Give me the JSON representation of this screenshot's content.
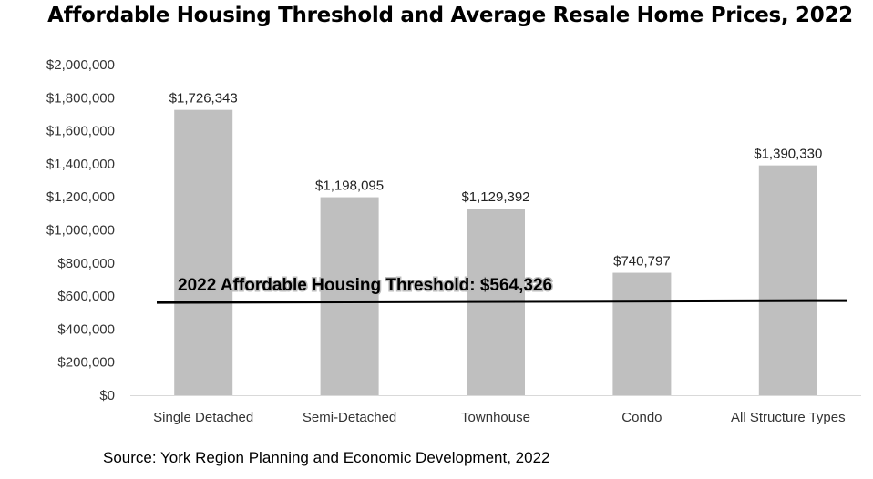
{
  "chart_data": {
    "type": "bar",
    "title": "Affordable Housing Threshold and Average Resale Home Prices, 2022",
    "categories": [
      "Single Detached",
      "Semi-Detached",
      "Townhouse",
      "Condo",
      "All Structure Types"
    ],
    "values": [
      1726343,
      1198095,
      1129392,
      740797,
      1390330
    ],
    "data_labels": [
      "$1,726,343",
      "$1,198,095",
      "$1,129,392",
      "$740,797",
      "$1,390,330"
    ],
    "y_ticks": [
      "$0",
      "$200,000",
      "$400,000",
      "$600,000",
      "$800,000",
      "$1,000,000",
      "$1,200,000",
      "$1,400,000",
      "$1,600,000",
      "$1,800,000",
      "$2,000,000"
    ],
    "ylim": [
      0,
      2000000
    ],
    "threshold": {
      "label": "2022 Affordable Housing Threshold: $564,326",
      "value": 564326
    },
    "bar_color": "#bfbfbf",
    "grid": false,
    "legend": "none"
  },
  "source": "Source: York Region Planning and Economic Development, 2022"
}
